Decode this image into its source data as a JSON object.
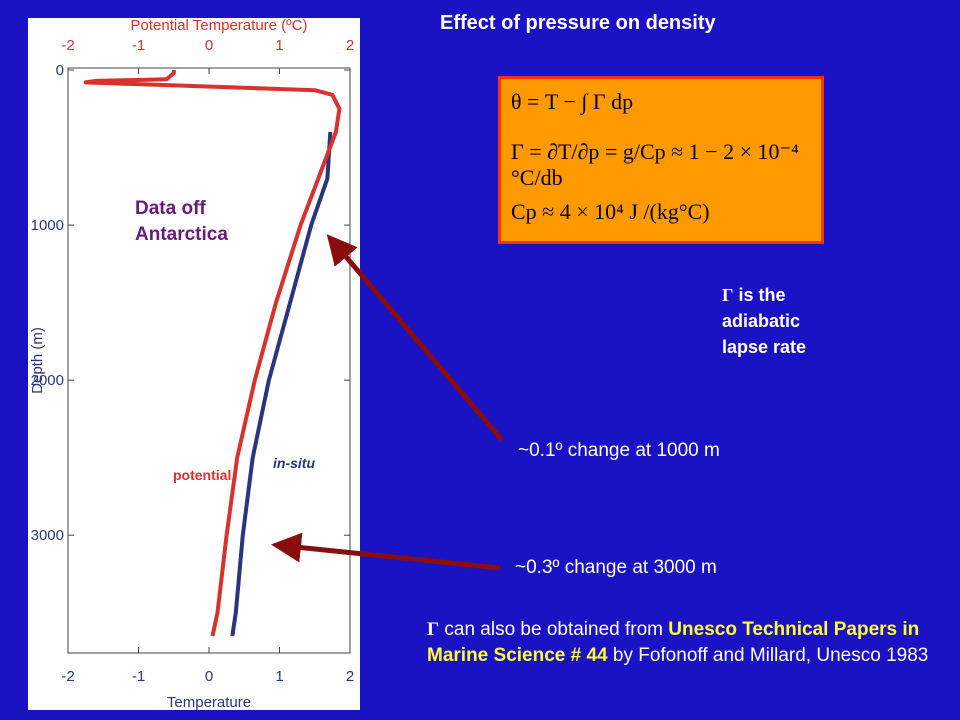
{
  "title": "Effect of pressure on density",
  "formulas": {
    "theta_line": "θ = T − ∫ Γ dp",
    "gamma_line": "Γ = ∂T/∂p = g/Cp ≈ 1 − 2 × 10⁻⁴ °C/db",
    "cp_line": "Cp ≈ 4 × 10⁴ J /(kg°C)"
  },
  "gamma_note": {
    "symbol": "Γ",
    "line1": " is the",
    "line2": "adiabatic",
    "line3": "lapse rate"
  },
  "annotations": {
    "change_1000": "~0.1º change at 1000 m",
    "change_3000": "~0.3º change at 3000 m"
  },
  "reference": {
    "symbol": "Γ",
    "prefix": " can also be obtained from ",
    "highlight": "Unesco Technical Papers in Marine Science # 44",
    "suffix": " by Fofonoff and Millard, Unesco 1983"
  },
  "colors": {
    "background": "#1a13c4",
    "potential": "#d9312b",
    "insitu": "#2a3580",
    "arrow": "#8a0c0c",
    "highlight": "#ffff33",
    "formula_bg": "#ff9900"
  },
  "chart_data": {
    "type": "line",
    "top_axis_label": "Potential Temperature (ºC)",
    "bottom_axis_label": "Temperature",
    "ylabel": "Depth (m)",
    "xlim": [
      -2,
      2
    ],
    "ylim": [
      0,
      3700
    ],
    "y_inverted": true,
    "x_ticks": [
      "-2",
      "-1",
      "0",
      "1",
      "2"
    ],
    "y_ticks": [
      "0",
      "1000",
      "2000",
      "3000"
    ],
    "overlay_text": "Data off Antarctica",
    "series": [
      {
        "name": "potential",
        "points": [
          [
            -0.5,
            0
          ],
          [
            -0.5,
            20
          ],
          [
            -0.6,
            60
          ],
          [
            -1.6,
            70
          ],
          [
            -1.75,
            80
          ],
          [
            1.5,
            130
          ],
          [
            1.75,
            160
          ],
          [
            1.85,
            250
          ],
          [
            1.8,
            400
          ],
          [
            1.55,
            700
          ],
          [
            1.3,
            1000
          ],
          [
            0.95,
            1500
          ],
          [
            0.65,
            2000
          ],
          [
            0.4,
            2500
          ],
          [
            0.25,
            3000
          ],
          [
            0.12,
            3500
          ],
          [
            0.05,
            3650
          ]
        ]
      },
      {
        "name": "in-situ",
        "points": [
          [
            1.72,
            400
          ],
          [
            1.68,
            700
          ],
          [
            1.45,
            1000
          ],
          [
            1.15,
            1500
          ],
          [
            0.85,
            2000
          ],
          [
            0.62,
            2500
          ],
          [
            0.48,
            3000
          ],
          [
            0.38,
            3500
          ],
          [
            0.33,
            3650
          ]
        ]
      }
    ]
  }
}
